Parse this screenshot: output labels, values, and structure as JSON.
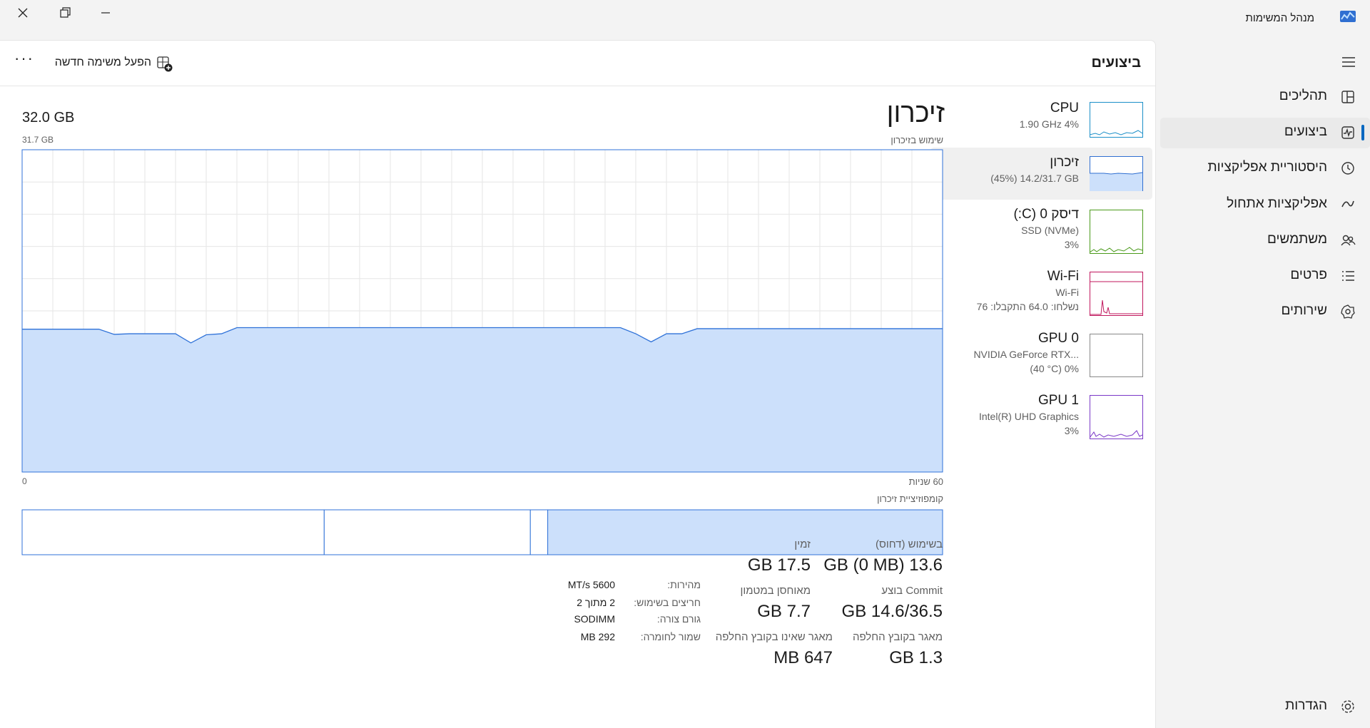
{
  "title_bar": {
    "title": "מנהל המשימות"
  },
  "sidebar": {
    "items": [
      "תהליכים",
      "ביצועים",
      "היסטוריית אפליקציות",
      "אפליקציות אתחול",
      "משתמשים",
      "פרטים",
      "שירותים"
    ],
    "settings": "הגדרות"
  },
  "header": {
    "title": "ביצועים",
    "run_new_task": "הפעל משימה חדשה"
  },
  "devices": [
    {
      "name": "CPU",
      "lines": [
        "1.90 GHz 4%"
      ]
    },
    {
      "name": "זיכרון",
      "lines": [
        "(45%) 14.2/31.7 GB"
      ]
    },
    {
      "name": "דיסק 0 (C:)",
      "lines": [
        "SSD (NVMe)",
        "3%"
      ]
    },
    {
      "name": "Wi-Fi",
      "lines": [
        "Wi-Fi",
        "נשלחו: 64.0 התקבלו: 76"
      ]
    },
    {
      "name": "GPU 0",
      "lines": [
        "NVIDIA GeForce RTX...",
        "(40 °C) 0%"
      ]
    },
    {
      "name": "GPU 1",
      "lines": [
        "Intel(R) UHD Graphics",
        "3%"
      ]
    }
  ],
  "memory": {
    "title": "זיכרון",
    "total": "32.0 GB",
    "graph": {
      "label": "שימוש בזיכרון",
      "max_label": "31.7 GB",
      "ylim": [
        0,
        31.7
      ],
      "x_left_label": "0",
      "x_right_label": "60 שניות",
      "values": [
        14.05,
        14.05,
        14.05,
        14.05,
        14.05,
        14.05,
        13.54,
        13.6,
        13.6,
        13.6,
        13.6,
        12.7,
        13.5,
        13.6,
        14.2,
        14.2,
        14.2,
        14.2,
        14.2,
        14.2,
        14.2,
        14.2,
        14.2,
        14.2,
        14.2,
        14.2,
        14.2,
        14.2,
        14.2,
        14.2,
        14.2,
        14.2,
        14.2,
        14.2,
        14.2,
        14.2,
        14.2,
        14.2,
        14.2,
        14.2,
        13.6,
        12.8,
        13.6,
        13.6,
        14.1,
        14.1,
        14.1,
        14.1,
        14.1,
        14.1,
        14.1,
        14.1,
        14.1,
        14.1,
        14.1,
        14.1,
        14.1,
        14.1,
        14.1,
        14.1,
        14.1
      ]
    },
    "composition": {
      "label": "קומפוזיציית זיכרון",
      "segments": [
        13.6,
        0.6,
        7.1,
        10.4
      ]
    },
    "stats": [
      {
        "label": "בשימוש (דחוס)",
        "value": "13.6 GB (0 MB)"
      },
      {
        "label": "זמין",
        "value": "17.5 GB"
      },
      {
        "label": "Commit בוצע",
        "value": "14.6/36.5 GB"
      },
      {
        "label": "מאוחסן במטמון",
        "value": "7.7 GB"
      },
      {
        "label": "מאגר בקובץ החלפה",
        "value": "1.3 GB"
      },
      {
        "label": "מאגר שאינו בקובץ החלפה",
        "value": "647 MB"
      }
    ],
    "details": [
      {
        "label": "מהירות:",
        "value": "MT/s 5600"
      },
      {
        "label": "חריצים בשימוש:",
        "value": "2 מתוך 2"
      },
      {
        "label": "גורם צורה:",
        "value": "SODIMM"
      },
      {
        "label": "שמור לחומרה:",
        "value": "292 MB"
      }
    ]
  }
}
